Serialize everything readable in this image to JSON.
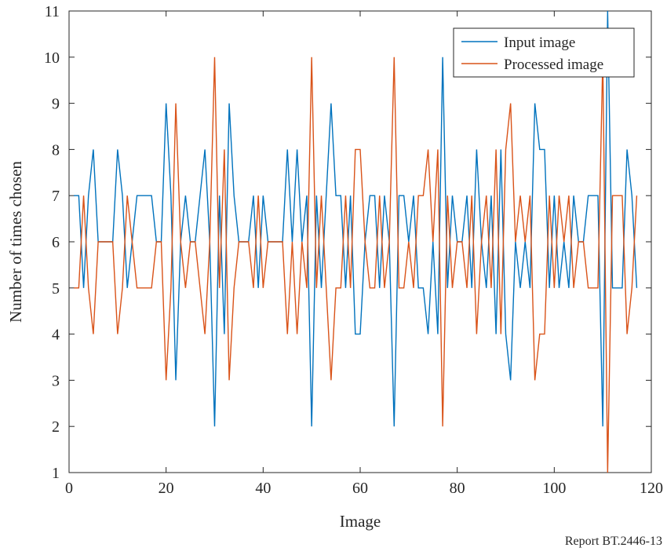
{
  "report_id": "Report BT.2446-13",
  "chart_data": {
    "type": "line",
    "xlabel": "Image",
    "ylabel": "Number of times chosen",
    "xlim": [
      0,
      120
    ],
    "ylim": [
      1,
      11
    ],
    "xticks": [
      0,
      20,
      40,
      60,
      80,
      100,
      120
    ],
    "yticks": [
      1,
      2,
      3,
      4,
      5,
      6,
      7,
      8,
      9,
      10,
      11
    ],
    "grid": false,
    "legend_position": "top-right",
    "x": [
      1,
      2,
      3,
      4,
      5,
      6,
      7,
      8,
      9,
      10,
      11,
      12,
      13,
      14,
      15,
      16,
      17,
      18,
      19,
      20,
      21,
      22,
      23,
      24,
      25,
      26,
      27,
      28,
      29,
      30,
      31,
      32,
      33,
      34,
      35,
      36,
      37,
      38,
      39,
      40,
      41,
      42,
      43,
      44,
      45,
      46,
      47,
      48,
      49,
      50,
      51,
      52,
      53,
      54,
      55,
      56,
      57,
      58,
      59,
      60,
      61,
      62,
      63,
      64,
      65,
      66,
      67,
      68,
      69,
      70,
      71,
      72,
      73,
      74,
      75,
      76,
      77,
      78,
      79,
      80,
      81,
      82,
      83,
      84,
      85,
      86,
      87,
      88,
      89,
      90,
      91,
      92,
      93,
      94,
      95,
      96,
      97,
      98,
      99,
      100,
      101,
      102,
      103,
      104,
      105,
      106,
      107,
      108,
      109,
      110,
      111,
      112,
      113,
      114,
      115,
      116,
      117
    ],
    "series": [
      {
        "name": "Input image",
        "color": "#0072BD",
        "values": [
          7,
          7,
          5,
          7,
          8,
          6,
          6,
          6,
          6,
          8,
          7,
          5,
          6,
          7,
          7,
          7,
          7,
          6,
          6,
          9,
          7,
          3,
          6,
          7,
          6,
          6,
          7,
          8,
          6,
          2,
          7,
          4,
          9,
          7,
          6,
          6,
          6,
          7,
          5,
          7,
          6,
          6,
          6,
          6,
          8,
          6,
          8,
          6,
          7,
          2,
          7,
          5,
          7,
          9,
          7,
          7,
          5,
          7,
          4,
          4,
          6,
          7,
          7,
          5,
          7,
          6,
          2,
          7,
          7,
          6,
          7,
          5,
          5,
          4,
          6,
          4,
          10,
          5,
          7,
          6,
          6,
          7,
          5,
          8,
          6,
          5,
          7,
          4,
          8,
          4,
          3,
          6,
          5,
          6,
          5,
          9,
          8,
          8,
          5,
          7,
          5,
          6,
          5,
          7,
          6,
          6,
          7,
          7,
          7,
          2,
          11,
          5,
          5,
          5,
          8,
          7,
          5
        ]
      },
      {
        "name": "Processed image",
        "color": "#D95319",
        "values": [
          5,
          5,
          7,
          5,
          4,
          6,
          6,
          6,
          6,
          4,
          5,
          7,
          6,
          5,
          5,
          5,
          5,
          6,
          6,
          3,
          5,
          9,
          6,
          5,
          6,
          6,
          5,
          4,
          6,
          10,
          5,
          8,
          3,
          5,
          6,
          6,
          6,
          5,
          7,
          5,
          6,
          6,
          6,
          6,
          4,
          6,
          4,
          6,
          5,
          10,
          5,
          7,
          5,
          3,
          5,
          5,
          7,
          5,
          8,
          8,
          6,
          5,
          5,
          7,
          5,
          6,
          10,
          5,
          5,
          6,
          5,
          7,
          7,
          8,
          6,
          8,
          2,
          7,
          5,
          6,
          6,
          5,
          7,
          4,
          6,
          7,
          5,
          8,
          4,
          8,
          9,
          6,
          7,
          6,
          7,
          3,
          4,
          4,
          7,
          5,
          7,
          6,
          7,
          5,
          6,
          6,
          5,
          5,
          5,
          10,
          1,
          7,
          7,
          7,
          4,
          5,
          7
        ]
      }
    ]
  }
}
